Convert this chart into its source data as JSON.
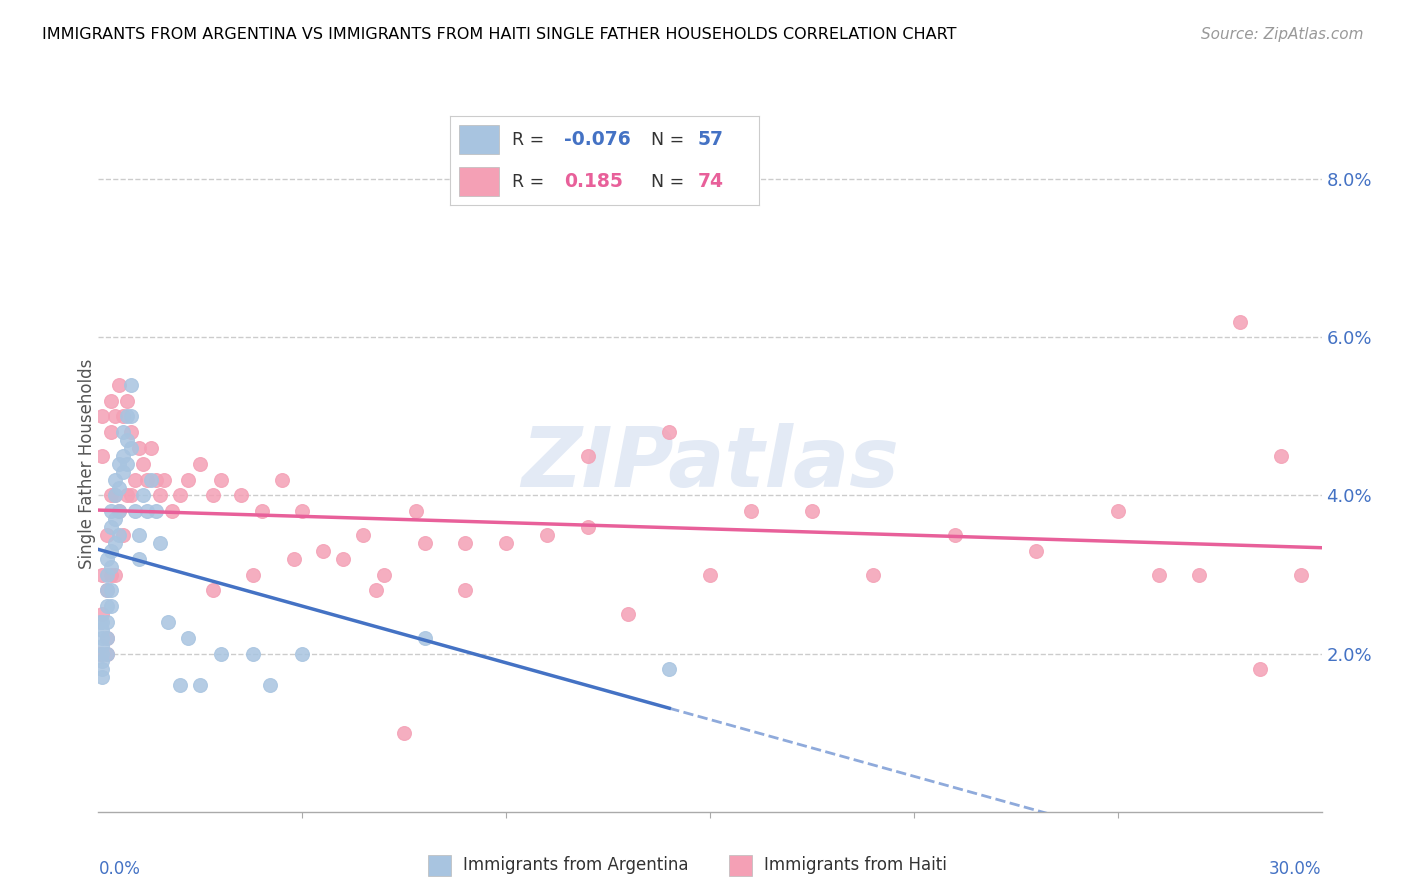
{
  "title": "IMMIGRANTS FROM ARGENTINA VS IMMIGRANTS FROM HAITI SINGLE FATHER HOUSEHOLDS CORRELATION CHART",
  "source": "Source: ZipAtlas.com",
  "ylabel": "Single Father Households",
  "xmin": 0.0,
  "xmax": 0.3,
  "ymin": 0.0,
  "ymax": 0.088,
  "yticks": [
    0.02,
    0.04,
    0.06,
    0.08
  ],
  "ytick_labels": [
    "2.0%",
    "4.0%",
    "6.0%",
    "8.0%"
  ],
  "argentina_color": "#a8c4e0",
  "haiti_color": "#f4a0b5",
  "argentina_line_color": "#4472c4",
  "haiti_line_color": "#e8609a",
  "watermark": "ZIPatlas",
  "arg_R": "-0.076",
  "arg_N": "57",
  "haiti_R": "0.185",
  "haiti_N": "74",
  "argentina_scatter_x": [
    0.0005,
    0.001,
    0.001,
    0.001,
    0.001,
    0.001,
    0.001,
    0.001,
    0.001,
    0.002,
    0.002,
    0.002,
    0.002,
    0.002,
    0.002,
    0.002,
    0.003,
    0.003,
    0.003,
    0.003,
    0.003,
    0.003,
    0.004,
    0.004,
    0.004,
    0.004,
    0.005,
    0.005,
    0.005,
    0.005,
    0.006,
    0.006,
    0.006,
    0.007,
    0.007,
    0.007,
    0.008,
    0.008,
    0.008,
    0.009,
    0.01,
    0.01,
    0.011,
    0.012,
    0.013,
    0.014,
    0.015,
    0.017,
    0.02,
    0.022,
    0.025,
    0.03,
    0.038,
    0.042,
    0.05,
    0.08,
    0.14
  ],
  "argentina_scatter_y": [
    0.024,
    0.024,
    0.023,
    0.022,
    0.021,
    0.02,
    0.019,
    0.018,
    0.017,
    0.032,
    0.03,
    0.028,
    0.026,
    0.024,
    0.022,
    0.02,
    0.038,
    0.036,
    0.033,
    0.031,
    0.028,
    0.026,
    0.042,
    0.04,
    0.037,
    0.034,
    0.044,
    0.041,
    0.038,
    0.035,
    0.048,
    0.045,
    0.043,
    0.05,
    0.047,
    0.044,
    0.054,
    0.05,
    0.046,
    0.038,
    0.035,
    0.032,
    0.04,
    0.038,
    0.042,
    0.038,
    0.034,
    0.024,
    0.016,
    0.022,
    0.016,
    0.02,
    0.02,
    0.016,
    0.02,
    0.022,
    0.018
  ],
  "haiti_scatter_x": [
    0.0005,
    0.001,
    0.001,
    0.001,
    0.001,
    0.002,
    0.002,
    0.002,
    0.002,
    0.003,
    0.003,
    0.003,
    0.003,
    0.004,
    0.004,
    0.004,
    0.005,
    0.005,
    0.006,
    0.006,
    0.007,
    0.007,
    0.008,
    0.008,
    0.009,
    0.01,
    0.011,
    0.012,
    0.013,
    0.014,
    0.015,
    0.016,
    0.018,
    0.02,
    0.022,
    0.025,
    0.028,
    0.03,
    0.035,
    0.04,
    0.045,
    0.05,
    0.055,
    0.06,
    0.065,
    0.07,
    0.075,
    0.08,
    0.09,
    0.1,
    0.11,
    0.12,
    0.13,
    0.14,
    0.15,
    0.16,
    0.175,
    0.19,
    0.21,
    0.23,
    0.25,
    0.26,
    0.27,
    0.28,
    0.285,
    0.29,
    0.295,
    0.078,
    0.048,
    0.038,
    0.028,
    0.09,
    0.068,
    0.12
  ],
  "haiti_scatter_y": [
    0.02,
    0.05,
    0.045,
    0.03,
    0.025,
    0.02,
    0.035,
    0.028,
    0.022,
    0.052,
    0.048,
    0.04,
    0.03,
    0.05,
    0.04,
    0.03,
    0.054,
    0.038,
    0.05,
    0.035,
    0.052,
    0.04,
    0.048,
    0.04,
    0.042,
    0.046,
    0.044,
    0.042,
    0.046,
    0.042,
    0.04,
    0.042,
    0.038,
    0.04,
    0.042,
    0.044,
    0.04,
    0.042,
    0.04,
    0.038,
    0.042,
    0.038,
    0.033,
    0.032,
    0.035,
    0.03,
    0.01,
    0.034,
    0.028,
    0.034,
    0.035,
    0.036,
    0.025,
    0.048,
    0.03,
    0.038,
    0.038,
    0.03,
    0.035,
    0.033,
    0.038,
    0.03,
    0.03,
    0.062,
    0.018,
    0.045,
    0.03,
    0.038,
    0.032,
    0.03,
    0.028,
    0.034,
    0.028,
    0.045
  ]
}
